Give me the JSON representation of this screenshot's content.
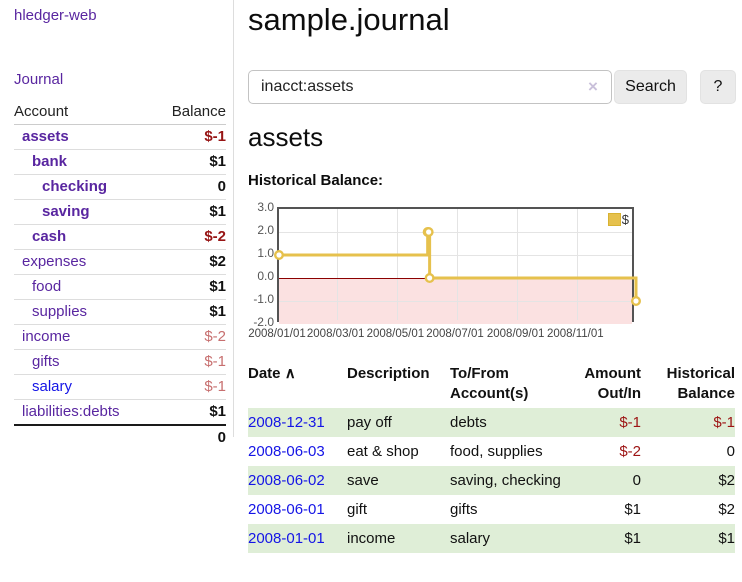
{
  "colors": {
    "link_purple": "#5926a0",
    "link_blue": "#1515e6",
    "neg_strong": "#971414",
    "neg_soft": "#c76f6f",
    "table_neg": "#9d1414",
    "row_green": "#dfeed7",
    "chart_line_gold": "#e6c14d",
    "chart_neg_region": "#fbe1e1",
    "chart_zero_line": "#8b0000"
  },
  "sidebar": {
    "brand": "hledger-web",
    "nav": {
      "journal": "Journal"
    },
    "accounts": {
      "col_account": "Account",
      "col_balance": "Balance",
      "rows": [
        {
          "name": "assets",
          "indent": 1,
          "bold": true,
          "unvisited": false,
          "balance": "$-1",
          "balance_style": "negstrong"
        },
        {
          "name": "bank",
          "indent": 2,
          "bold": true,
          "unvisited": false,
          "balance": "$1",
          "balance_style": "pos"
        },
        {
          "name": "checking",
          "indent": 3,
          "bold": true,
          "unvisited": false,
          "balance": "0",
          "balance_style": "pos"
        },
        {
          "name": "saving",
          "indent": 3,
          "bold": true,
          "unvisited": false,
          "balance": "$1",
          "balance_style": "pos"
        },
        {
          "name": "cash",
          "indent": 2,
          "bold": true,
          "unvisited": false,
          "balance": "$-2",
          "balance_style": "negstrong"
        },
        {
          "name": "expenses",
          "indent": 1,
          "bold": false,
          "unvisited": false,
          "balance": "$2",
          "balance_style": "pos"
        },
        {
          "name": "food",
          "indent": 2,
          "bold": false,
          "unvisited": false,
          "balance": "$1",
          "balance_style": "pos"
        },
        {
          "name": "supplies",
          "indent": 2,
          "bold": false,
          "unvisited": false,
          "balance": "$1",
          "balance_style": "pos"
        },
        {
          "name": "income",
          "indent": 1,
          "bold": false,
          "unvisited": false,
          "balance": "$-2",
          "balance_style": "negsoft"
        },
        {
          "name": "gifts",
          "indent": 2,
          "bold": false,
          "unvisited": false,
          "balance": "$-1",
          "balance_style": "negsoft"
        },
        {
          "name": "salary",
          "indent": 2,
          "bold": false,
          "unvisited": true,
          "balance": "$-1",
          "balance_style": "negsoft"
        },
        {
          "name": "liabilities:debts",
          "indent": 1,
          "bold": false,
          "unvisited": false,
          "balance": "$1",
          "balance_style": "pos"
        }
      ],
      "total": "0"
    }
  },
  "header": {
    "title": "sample.journal"
  },
  "search": {
    "query": "inacct:assets",
    "clear_icon": "×",
    "button": "Search",
    "help": "?"
  },
  "main": {
    "account_heading": "assets",
    "chart_label": "Historical Balance:"
  },
  "chart_data": {
    "type": "line",
    "title": "Historical Balance:",
    "step": true,
    "series": [
      {
        "name": "$",
        "points": [
          {
            "date": "2008-01-01",
            "value": 1
          },
          {
            "date": "2008-06-01",
            "value": 2
          },
          {
            "date": "2008-06-02",
            "value": 2
          },
          {
            "date": "2008-06-03",
            "value": 0
          },
          {
            "date": "2008-12-31",
            "value": -1
          }
        ]
      }
    ],
    "xlim": [
      "2008-01-01",
      "2008-12-31"
    ],
    "ylim": [
      -2,
      3
    ],
    "x_ticks": [
      "2008/01/01",
      "2008/03/01",
      "2008/05/01",
      "2008/07/01",
      "2008/09/01",
      "2008/11/01"
    ],
    "y_ticks": [
      3.0,
      2.0,
      1.0,
      0.0,
      -1.0,
      -2.0
    ],
    "grid": true,
    "legend_position": "top-right",
    "legend_label": "$"
  },
  "register": {
    "sort_icon": "∧",
    "columns": {
      "date": "Date",
      "description": "Description",
      "account": "To/From Account(s)",
      "amount": "Amount Out/In",
      "balance": "Historical Balance"
    },
    "rows": [
      {
        "date": "2008-12-31",
        "description": "pay off",
        "account": "debts",
        "amount": "$-1",
        "amount_neg": true,
        "balance": "$-1",
        "balance_neg": true
      },
      {
        "date": "2008-06-03",
        "description": "eat & shop",
        "account": "food, supplies",
        "amount": "$-2",
        "amount_neg": true,
        "balance": "0",
        "balance_neg": false
      },
      {
        "date": "2008-06-02",
        "description": "save",
        "account": "saving, checking",
        "amount": "0",
        "amount_neg": false,
        "balance": "$2",
        "balance_neg": false
      },
      {
        "date": "2008-06-01",
        "description": "gift",
        "account": "gifts",
        "amount": "$1",
        "amount_neg": false,
        "balance": "$2",
        "balance_neg": false
      },
      {
        "date": "2008-01-01",
        "description": "income",
        "account": "salary",
        "amount": "$1",
        "amount_neg": false,
        "balance": "$1",
        "balance_neg": false
      }
    ]
  }
}
